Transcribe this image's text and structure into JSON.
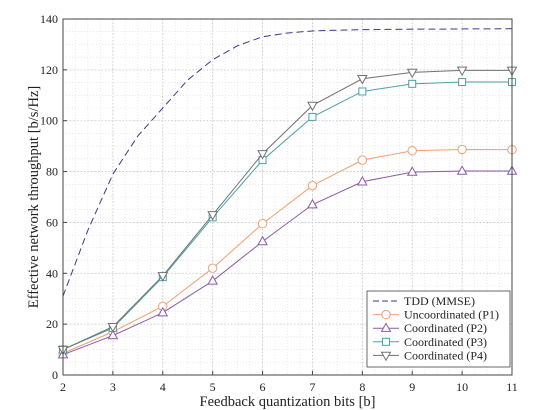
{
  "chart_data": {
    "type": "line",
    "title": "",
    "xlabel": "Feedback quantization bits [b]",
    "ylabel": "Effective network throughput [b/s/Hz]",
    "xlim": [
      2,
      11
    ],
    "ylim": [
      0,
      140
    ],
    "xticks": [
      2,
      3,
      4,
      5,
      6,
      7,
      8,
      9,
      10,
      11
    ],
    "yticks": [
      0,
      20,
      40,
      60,
      80,
      100,
      120,
      140
    ],
    "grid": true,
    "minor_grid": true,
    "legend_position": "bottom-right",
    "series": [
      {
        "name": "TDD (MMSE)",
        "color": "#3a3a8c",
        "dash": true,
        "marker": "none",
        "x": [
          2,
          2.5,
          3,
          3.5,
          4,
          4.5,
          5,
          5.5,
          6,
          6.5,
          7,
          7.5,
          8,
          8.5,
          9,
          9.5,
          10,
          10.5,
          11
        ],
        "y": [
          31,
          57,
          79,
          94,
          105,
          116,
          124,
          129.5,
          133,
          134.5,
          135.3,
          135.6,
          135.8,
          135.9,
          136,
          136,
          136.1,
          136.1,
          136.2
        ]
      },
      {
        "name": "Uncoordinated (P1)",
        "color": "#f0a070",
        "dash": false,
        "marker": "circle",
        "x": [
          2,
          3,
          4,
          5,
          6,
          7,
          8,
          9,
          10,
          11
        ],
        "y": [
          8.5,
          17,
          27,
          42,
          59.5,
          74.5,
          84.5,
          88.2,
          88.7,
          88.6
        ]
      },
      {
        "name": "Coordinated (P2)",
        "color": "#8a5aa8",
        "dash": false,
        "marker": "triangle-up",
        "x": [
          2,
          3,
          4,
          5,
          6,
          7,
          8,
          9,
          10,
          11
        ],
        "y": [
          8,
          15.5,
          24.5,
          37,
          52.5,
          67,
          76,
          79.8,
          80.2,
          80.2
        ]
      },
      {
        "name": "Coordinated (P3)",
        "color": "#4aa0a8",
        "dash": false,
        "marker": "square",
        "x": [
          2,
          3,
          4,
          5,
          6,
          7,
          8,
          9,
          10,
          11
        ],
        "y": [
          10,
          18.5,
          38.5,
          62,
          84.5,
          101.5,
          111.5,
          114.5,
          115.2,
          115.2
        ]
      },
      {
        "name": "Coordinated (P4)",
        "color": "#707070",
        "dash": false,
        "marker": "triangle-down",
        "x": [
          2,
          3,
          4,
          5,
          6,
          7,
          8,
          9,
          10,
          11
        ],
        "y": [
          10,
          19,
          39,
          63,
          87,
          106,
          116.5,
          119,
          119.8,
          119.8
        ]
      }
    ]
  }
}
